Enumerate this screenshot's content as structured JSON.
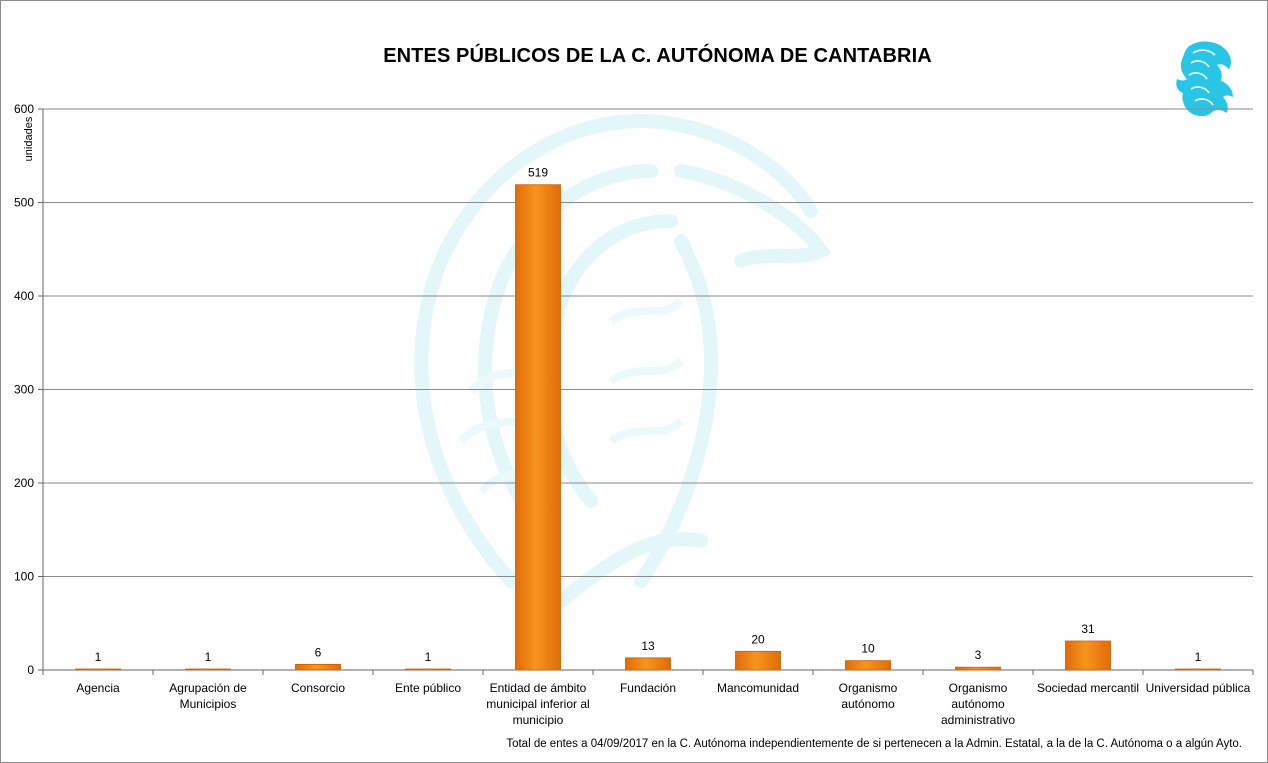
{
  "chart_data": {
    "type": "bar",
    "title": "ENTES PÚBLICOS DE LA C. AUTÓNOMA DE CANTABRIA",
    "ylabel": "unidades",
    "xlabel": "",
    "ylim": [
      0,
      600
    ],
    "yticks": [
      0,
      100,
      200,
      300,
      400,
      500,
      600
    ],
    "grid": true,
    "categories": [
      "Agencia",
      "Agrupación de Municipios",
      "Consorcio",
      "Ente público",
      "Entidad de ámbito municipal inferior al municipio",
      "Fundación",
      "Mancomunidad",
      "Organismo autónomo",
      "Organismo autónomo administrativo",
      "Sociedad mercantil",
      "Universidad pública"
    ],
    "category_lines": [
      [
        "Agencia"
      ],
      [
        "Agrupación de",
        "Municipios"
      ],
      [
        "Consorcio"
      ],
      [
        "Ente público"
      ],
      [
        "Entidad de ámbito",
        "municipal inferior al",
        "municipio"
      ],
      [
        "Fundación"
      ],
      [
        "Mancomunidad"
      ],
      [
        "Organismo",
        "autónomo"
      ],
      [
        "Organismo",
        "autónomo",
        "administrativo"
      ],
      [
        "Sociedad mercantil"
      ],
      [
        "Universidad pública"
      ]
    ],
    "values": [
      1,
      1,
      6,
      1,
      519,
      13,
      20,
      10,
      3,
      31,
      1
    ],
    "bar_color": "#f7941d",
    "footnote": "Total de entes  a 04/09/2017 en  la C. Autónoma  independientemente  de si pertenecen  a la Admin. Estatal, a la de la C. Autónoma  o a algún Ayto."
  },
  "colors": {
    "bar": "#f7941d",
    "bar_dark": "#e06c0a",
    "grid": "#8a8a8a",
    "watermark": "#e6f7fb",
    "logo": "#29c5e6"
  },
  "icons": {
    "logo": "griffin-logo-icon",
    "watermark": "eagle-watermark-icon"
  }
}
